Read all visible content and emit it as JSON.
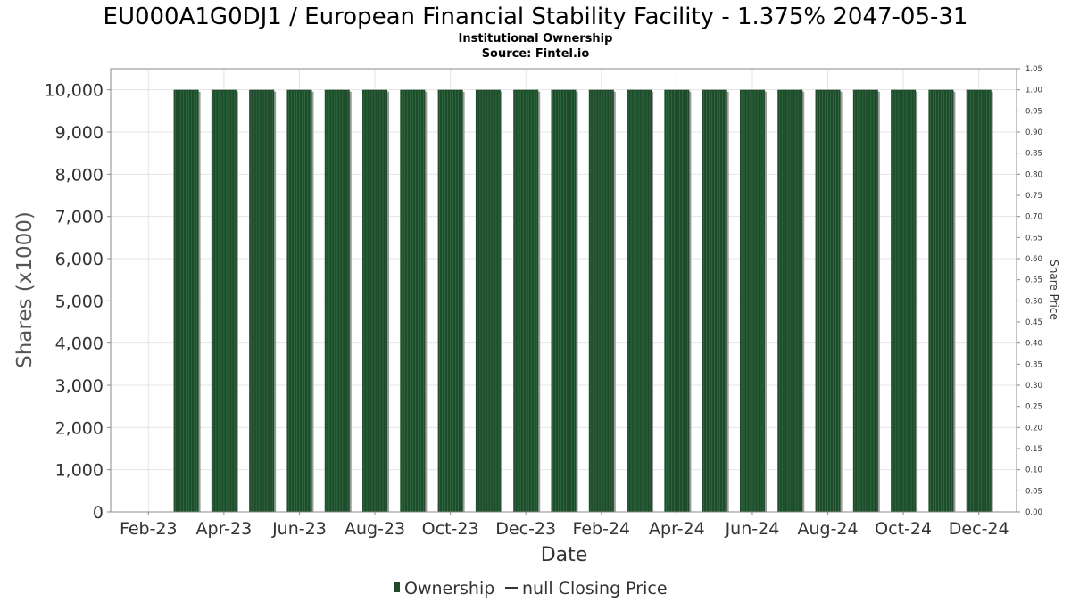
{
  "colors": {
    "bar_fill": "#1f4a2c",
    "bar_stripe": "#2e7040",
    "bar_shadow": "#9a9a9a",
    "grid": "#e4e4e4",
    "axis": "#888888",
    "text": "#333333",
    "title": "#000000"
  },
  "chart_data": {
    "type": "bar",
    "title": "EU000A1G0DJ1 / European Financial Stability Facility - 1.375% 2047-05-31",
    "subtitle": "Institutional Ownership",
    "source": "Source: Fintel.io",
    "xlabel": "Date",
    "ylabel": "Shares (x1000)",
    "y2label": "Share Price",
    "ylim": [
      0,
      10500
    ],
    "y2lim": [
      0,
      1.05
    ],
    "yticks": [
      "0",
      "1,000",
      "2,000",
      "3,000",
      "4,000",
      "5,000",
      "6,000",
      "7,000",
      "8,000",
      "9,000",
      "10,000"
    ],
    "y2ticks": [
      "0.00",
      "0.05",
      "0.10",
      "0.15",
      "0.20",
      "0.25",
      "0.30",
      "0.35",
      "0.40",
      "0.45",
      "0.50",
      "0.55",
      "0.60",
      "0.65",
      "0.70",
      "0.75",
      "0.80",
      "0.85",
      "0.90",
      "0.95",
      "1.00",
      "1.05"
    ],
    "xticks": [
      "Feb-23",
      "Apr-23",
      "Jun-23",
      "Aug-23",
      "Oct-23",
      "Dec-23",
      "Feb-24",
      "Apr-24",
      "Jun-24",
      "Aug-24",
      "Oct-24",
      "Dec-24"
    ],
    "x_start_month": "2023-01",
    "x_end_month": "2025-01",
    "series": [
      {
        "name": "Ownership",
        "dates": [
          "2023-03",
          "2023-04",
          "2023-05",
          "2023-06",
          "2023-07",
          "2023-08",
          "2023-09",
          "2023-10",
          "2023-11",
          "2023-12",
          "2024-01",
          "2024-02",
          "2024-03",
          "2024-04",
          "2024-05",
          "2024-06",
          "2024-07",
          "2024-08",
          "2024-09",
          "2024-10",
          "2024-11",
          "2024-12"
        ],
        "values": [
          10000,
          10000,
          10000,
          10000,
          10000,
          10000,
          10000,
          10000,
          10000,
          10000,
          10000,
          10000,
          10000,
          10000,
          10000,
          10000,
          10000,
          10000,
          10000,
          10000,
          10000,
          10000
        ]
      }
    ],
    "legend": [
      {
        "label": "Ownership",
        "marker": "bar"
      },
      {
        "label": "null Closing Price",
        "marker": "line"
      }
    ],
    "legend_position": "bottom-center"
  }
}
